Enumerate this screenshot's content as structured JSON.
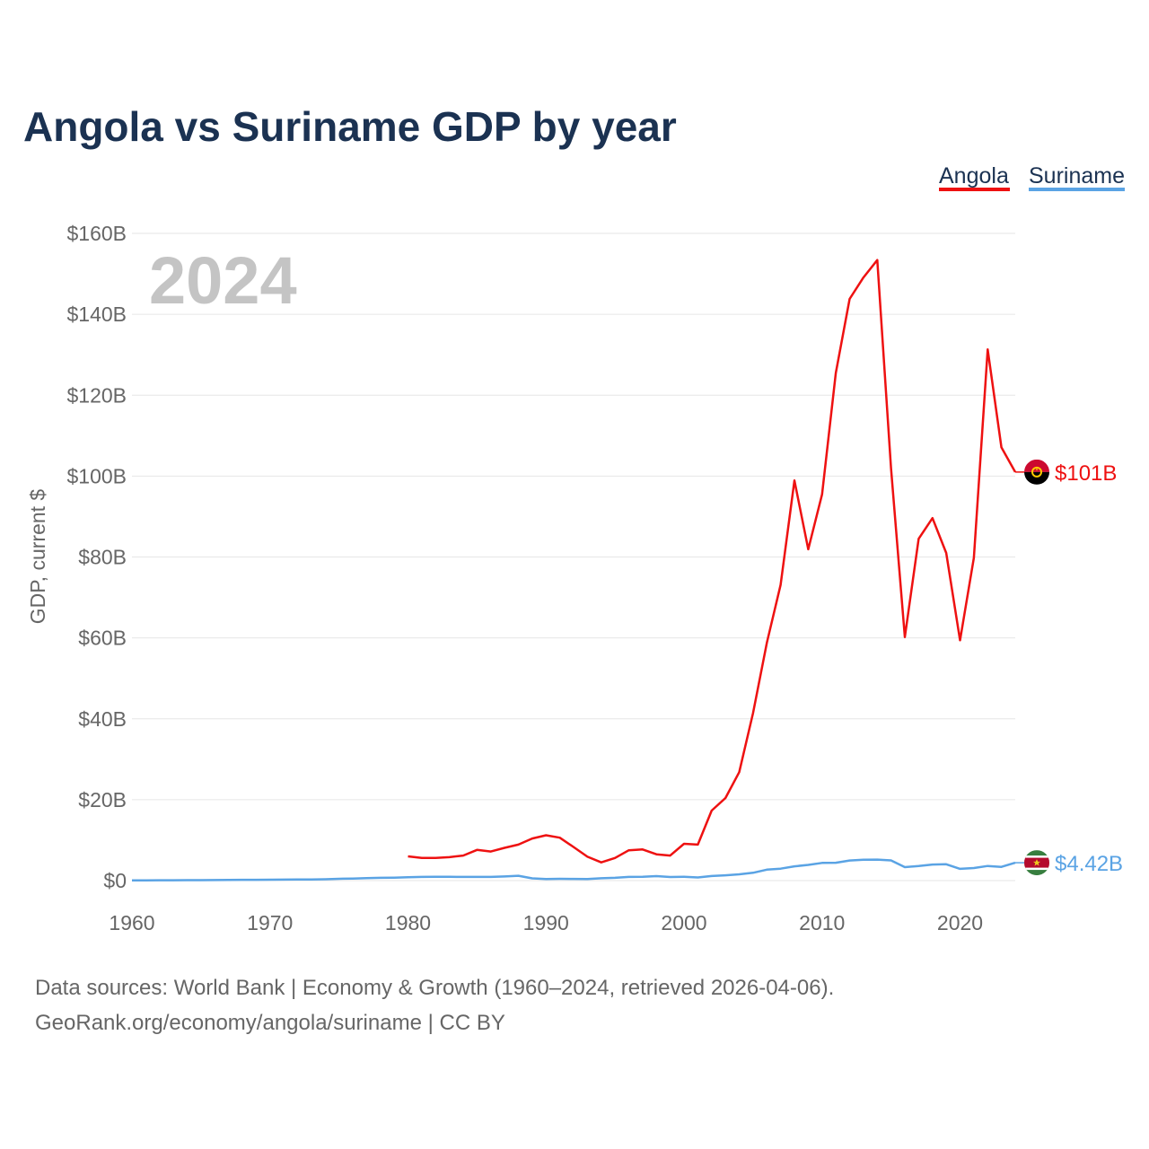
{
  "chart_data": {
    "type": "line",
    "title": "Angola vs Suriname GDP by year",
    "ylabel": "GDP, current $",
    "xlabel": "",
    "xlim": [
      1960,
      2024
    ],
    "ylim": [
      0,
      160
    ],
    "x_ticks": [
      {
        "value": 1960,
        "label": "1960"
      },
      {
        "value": 1970,
        "label": "1970"
      },
      {
        "value": 1980,
        "label": "1980"
      },
      {
        "value": 1990,
        "label": "1990"
      },
      {
        "value": 2000,
        "label": "2000"
      },
      {
        "value": 2010,
        "label": "2010"
      },
      {
        "value": 2020,
        "label": "2020"
      }
    ],
    "y_ticks": [
      {
        "value": 0,
        "label": "$0"
      },
      {
        "value": 20,
        "label": "$20B"
      },
      {
        "value": 40,
        "label": "$40B"
      },
      {
        "value": 60,
        "label": "$60B"
      },
      {
        "value": 80,
        "label": "$80B"
      },
      {
        "value": 100,
        "label": "$100B"
      },
      {
        "value": 120,
        "label": "$120B"
      },
      {
        "value": 140,
        "label": "$140B"
      },
      {
        "value": 160,
        "label": "$160B"
      }
    ],
    "current_year": "2024",
    "units": "billions of current US$",
    "legend_position": "top-right",
    "series": [
      {
        "name": "Angola",
        "color": "#ee1111",
        "flag": "angola-flag-icon",
        "end_label": "$101B",
        "x": [
          1980,
          1981,
          1982,
          1983,
          1984,
          1985,
          1986,
          1987,
          1988,
          1989,
          1990,
          1991,
          1992,
          1993,
          1994,
          1995,
          1996,
          1997,
          1998,
          1999,
          2000,
          2001,
          2002,
          2003,
          2004,
          2005,
          2006,
          2007,
          2008,
          2009,
          2010,
          2011,
          2012,
          2013,
          2014,
          2015,
          2016,
          2017,
          2018,
          2019,
          2020,
          2021,
          2022,
          2023,
          2024
        ],
        "values": [
          6.0,
          5.6,
          5.6,
          5.8,
          6.2,
          7.6,
          7.2,
          8.1,
          8.9,
          10.4,
          11.2,
          10.6,
          8.3,
          5.9,
          4.5,
          5.6,
          7.5,
          7.7,
          6.5,
          6.2,
          9.1,
          8.9,
          17.3,
          20.4,
          26.8,
          41.4,
          58.8,
          73.1,
          98.9,
          81.9,
          95.5,
          125.5,
          143.8,
          149.1,
          153.4,
          102.0,
          60.2,
          84.5,
          89.6,
          81.0,
          59.4,
          79.8,
          131.3,
          107.1,
          101.0
        ]
      },
      {
        "name": "Suriname",
        "color": "#5aa3e4",
        "flag": "suriname-flag-icon",
        "end_label": "$4.42B",
        "x": [
          1960,
          1961,
          1962,
          1963,
          1964,
          1965,
          1966,
          1967,
          1968,
          1969,
          1970,
          1971,
          1972,
          1973,
          1974,
          1975,
          1976,
          1977,
          1978,
          1979,
          1980,
          1981,
          1982,
          1983,
          1984,
          1985,
          1986,
          1987,
          1988,
          1989,
          1990,
          1991,
          1992,
          1993,
          1994,
          1995,
          1996,
          1997,
          1998,
          1999,
          2000,
          2001,
          2002,
          2003,
          2004,
          2005,
          2006,
          2007,
          2008,
          2009,
          2010,
          2011,
          2012,
          2013,
          2014,
          2015,
          2016,
          2017,
          2018,
          2019,
          2020,
          2021,
          2022,
          2023,
          2024
        ],
        "values": [
          0.06,
          0.07,
          0.08,
          0.09,
          0.1,
          0.12,
          0.14,
          0.17,
          0.19,
          0.21,
          0.22,
          0.24,
          0.26,
          0.29,
          0.34,
          0.45,
          0.5,
          0.6,
          0.68,
          0.74,
          0.82,
          0.92,
          0.96,
          0.93,
          0.92,
          0.91,
          0.92,
          1.02,
          1.19,
          0.56,
          0.39,
          0.45,
          0.42,
          0.4,
          0.57,
          0.69,
          0.9,
          0.93,
          1.1,
          0.88,
          0.96,
          0.77,
          1.14,
          1.31,
          1.55,
          1.94,
          2.71,
          2.95,
          3.53,
          3.88,
          4.37,
          4.42,
          4.98,
          5.15,
          5.2,
          4.99,
          3.32,
          3.59,
          3.98,
          4.04,
          2.91,
          3.1,
          3.62,
          3.4,
          4.42
        ]
      }
    ]
  },
  "footer": {
    "line1": "Data sources: World Bank | Economy & Growth (1960–2024, retrieved 2026-04-06).",
    "line2": "GeoRank.org/economy/angola/suriname | CC BY"
  }
}
